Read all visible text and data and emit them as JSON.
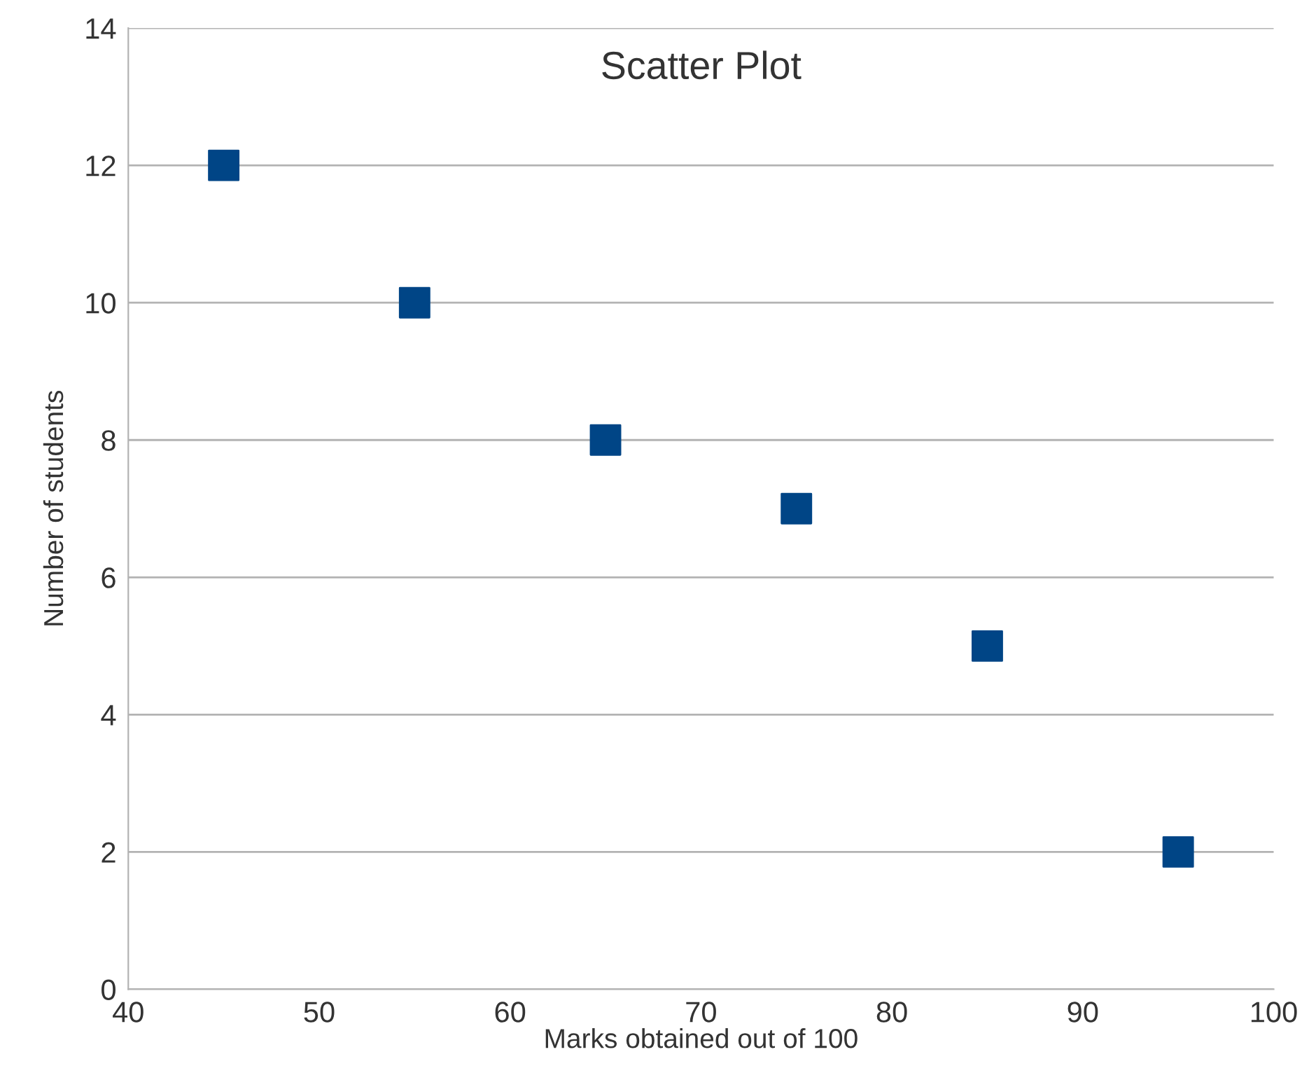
{
  "chart_data": {
    "type": "scatter",
    "title": "Scatter Plot",
    "xlabel": "Marks obtained out of 100",
    "ylabel": "Number of students",
    "x": [
      45,
      55,
      65,
      75,
      85,
      95
    ],
    "series": [
      {
        "color": "#004586",
        "values": [
          12,
          10,
          8,
          7,
          5,
          2
        ]
      }
    ],
    "marker": "square",
    "xlim": [
      40,
      100
    ],
    "xticks": [
      40,
      50,
      60,
      70,
      80,
      90,
      100
    ],
    "ylim": [
      0,
      14
    ],
    "yticks": [
      0,
      2,
      4,
      6,
      8,
      10,
      12,
      14
    ],
    "grid": "y"
  }
}
